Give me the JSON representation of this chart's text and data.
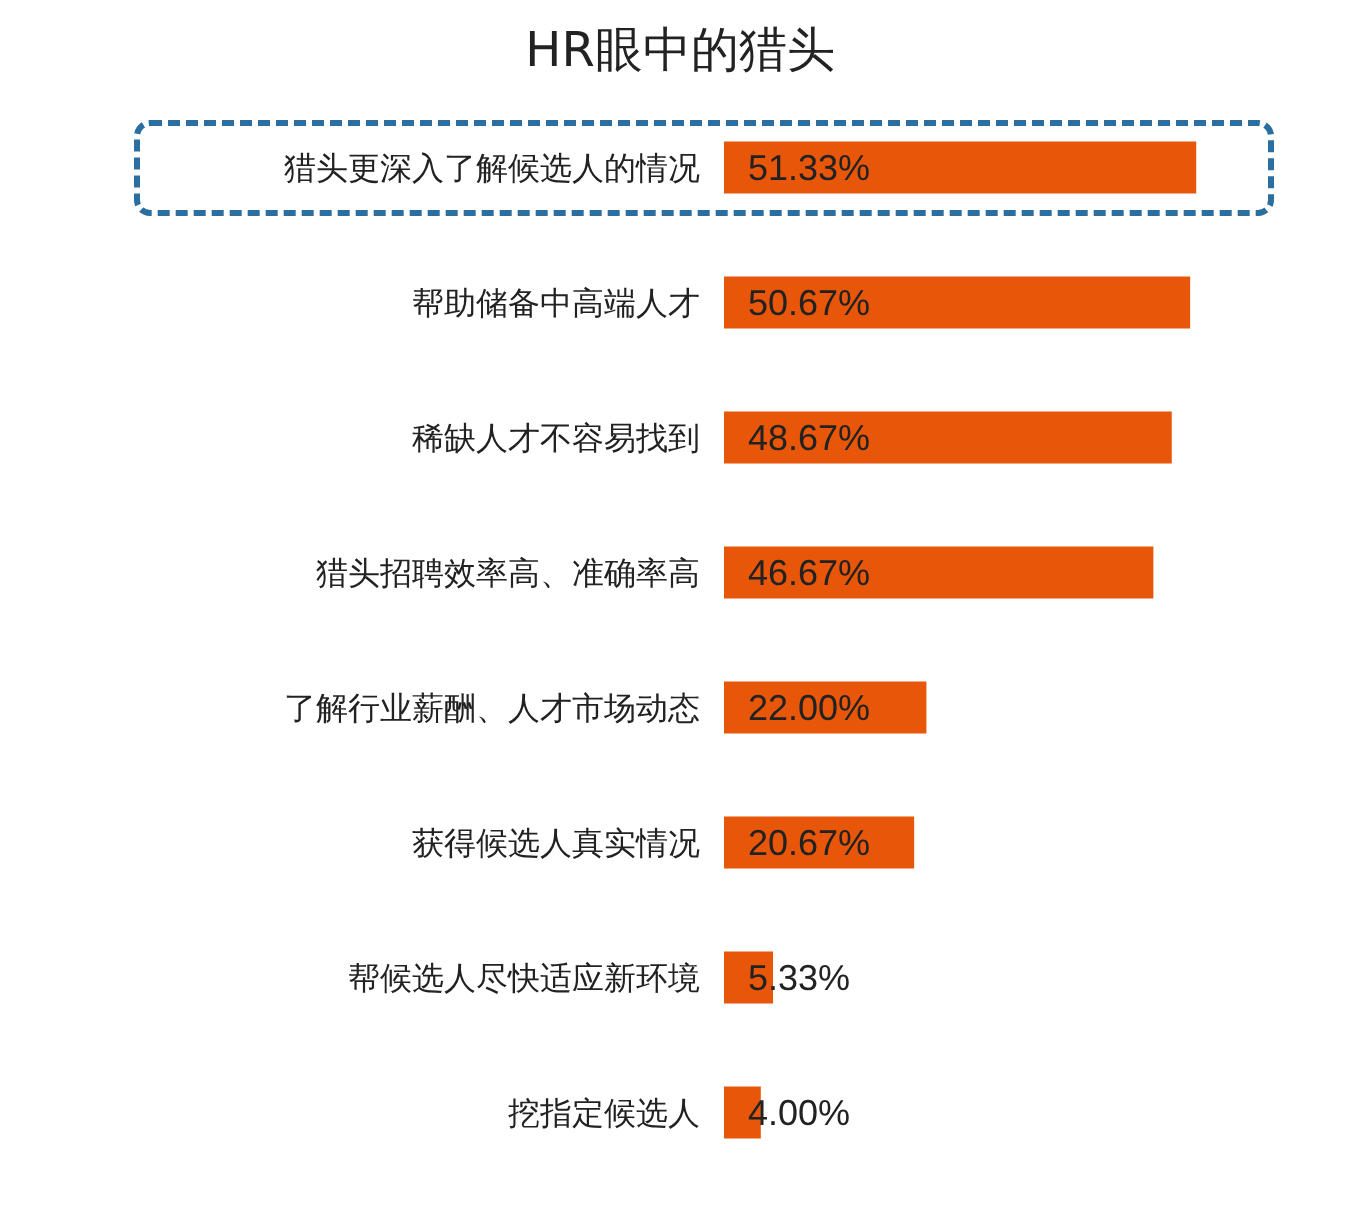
{
  "chart_data": {
    "type": "bar",
    "orientation": "horizontal",
    "title": "HR眼中的猎头",
    "categories": [
      "猎头更深入了解候选人的情况",
      "帮助储备中高端人才",
      "稀缺人才不容易找到",
      "猎头招聘效率高、准确率高",
      "了解行业薪酬、人才市场动态",
      "获得候选人真实情况",
      "帮候选人尽快适应新环境",
      "挖指定候选人"
    ],
    "values": [
      51.33,
      50.67,
      48.67,
      46.67,
      22.0,
      20.67,
      5.33,
      4.0
    ],
    "value_labels": [
      "51.33%",
      "50.67%",
      "48.67%",
      "46.67%",
      "22.00%",
      "20.67%",
      "5.33%",
      "4.00%"
    ],
    "color": "#e8560a"
  }
}
